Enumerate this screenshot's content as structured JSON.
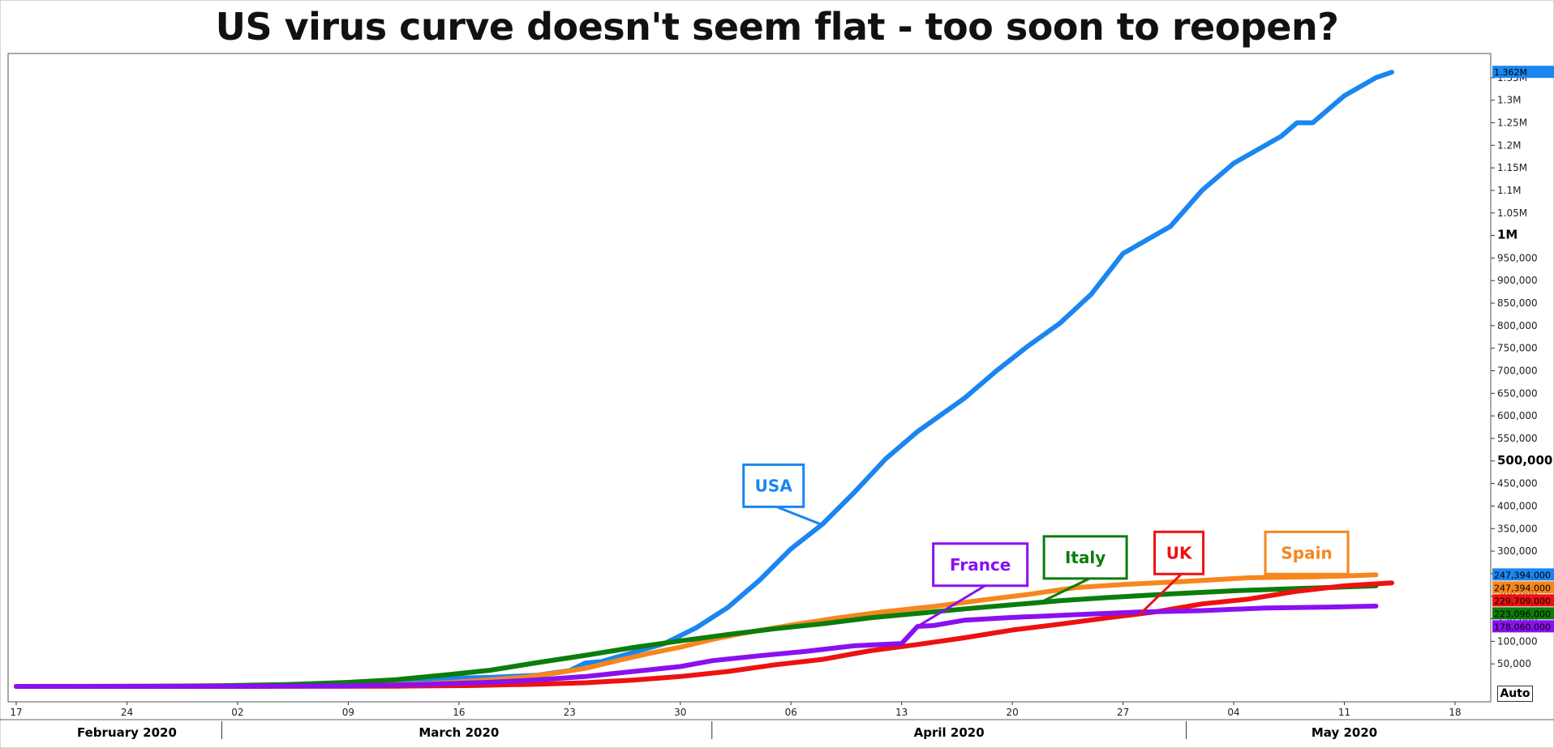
{
  "chart_data": {
    "type": "line",
    "title": "US virus curve doesn't seem flat - too soon to reopen?",
    "xlabel": "",
    "ylabel": "",
    "x_range": [
      "2020-02-17",
      "2020-05-18"
    ],
    "ylim": [
      0,
      1400000
    ],
    "y_ticks": [
      {
        "value": 50000,
        "label": "50,000"
      },
      {
        "value": 100000,
        "label": "100,000"
      },
      {
        "value": 150000,
        "label": "150,000"
      },
      {
        "value": 200000,
        "label": "200,000"
      },
      {
        "value": 250000,
        "label": "250,000"
      },
      {
        "value": 300000,
        "label": "300,000"
      },
      {
        "value": 350000,
        "label": "350,000"
      },
      {
        "value": 400000,
        "label": "400,000"
      },
      {
        "value": 450000,
        "label": "450,000"
      },
      {
        "value": 500000,
        "label": "500,000",
        "major": true
      },
      {
        "value": 550000,
        "label": "550,000"
      },
      {
        "value": 600000,
        "label": "600,000"
      },
      {
        "value": 650000,
        "label": "650,000"
      },
      {
        "value": 700000,
        "label": "700,000"
      },
      {
        "value": 750000,
        "label": "750,000"
      },
      {
        "value": 800000,
        "label": "800,000"
      },
      {
        "value": 850000,
        "label": "850,000"
      },
      {
        "value": 900000,
        "label": "900,000"
      },
      {
        "value": 950000,
        "label": "950,000"
      },
      {
        "value": 1000000,
        "label": "1M",
        "major": true
      },
      {
        "value": 1050000,
        "label": "1.05M"
      },
      {
        "value": 1100000,
        "label": "1.1M"
      },
      {
        "value": 1150000,
        "label": "1.15M"
      },
      {
        "value": 1200000,
        "label": "1.2M"
      },
      {
        "value": 1250000,
        "label": "1.25M"
      },
      {
        "value": 1300000,
        "label": "1.3M"
      },
      {
        "value": 1350000,
        "label": "1.35M"
      }
    ],
    "x_ticks": [
      {
        "date": "2020-02-17",
        "label": "17"
      },
      {
        "date": "2020-02-24",
        "label": "24"
      },
      {
        "date": "2020-03-02",
        "label": "02"
      },
      {
        "date": "2020-03-09",
        "label": "09"
      },
      {
        "date": "2020-03-16",
        "label": "16"
      },
      {
        "date": "2020-03-23",
        "label": "23"
      },
      {
        "date": "2020-03-30",
        "label": "30"
      },
      {
        "date": "2020-04-06",
        "label": "06"
      },
      {
        "date": "2020-04-13",
        "label": "13"
      },
      {
        "date": "2020-04-20",
        "label": "20"
      },
      {
        "date": "2020-04-27",
        "label": "27"
      },
      {
        "date": "2020-05-04",
        "label": "04"
      },
      {
        "date": "2020-05-11",
        "label": "11"
      },
      {
        "date": "2020-05-18",
        "label": "18"
      }
    ],
    "months": [
      {
        "label": "February 2020",
        "center": "2020-02-24",
        "end": "2020-03-01"
      },
      {
        "label": "March 2020",
        "center": "2020-03-16",
        "end": "2020-04-01"
      },
      {
        "label": "April 2020",
        "center": "2020-04-16",
        "end": "2020-05-01"
      },
      {
        "label": "May 2020",
        "center": "2020-05-11",
        "end": null
      }
    ],
    "series": [
      {
        "name": "USA",
        "color": "#1a86f0",
        "last_label": "1.362M",
        "points": [
          [
            "2020-02-17",
            0
          ],
          [
            "2020-02-26",
            100
          ],
          [
            "2020-03-02",
            1000
          ],
          [
            "2020-03-07",
            3000
          ],
          [
            "2020-03-11",
            9000
          ],
          [
            "2020-03-15",
            18000
          ],
          [
            "2020-03-18",
            20000
          ],
          [
            "2020-03-21",
            25000
          ],
          [
            "2020-03-23",
            35000
          ],
          [
            "2020-03-24",
            52000
          ],
          [
            "2020-03-25",
            55000
          ],
          [
            "2020-03-26",
            65000
          ],
          [
            "2020-03-27",
            75000
          ],
          [
            "2020-03-29",
            95000
          ],
          [
            "2020-03-31",
            130000
          ],
          [
            "2020-04-02",
            175000
          ],
          [
            "2020-04-04",
            235000
          ],
          [
            "2020-04-06",
            305000
          ],
          [
            "2020-04-08",
            360000
          ],
          [
            "2020-04-10",
            430000
          ],
          [
            "2020-04-12",
            505000
          ],
          [
            "2020-04-14",
            565000
          ],
          [
            "2020-04-17",
            640000
          ],
          [
            "2020-04-19",
            700000
          ],
          [
            "2020-04-21",
            755000
          ],
          [
            "2020-04-23",
            805000
          ],
          [
            "2020-04-25",
            870000
          ],
          [
            "2020-04-27",
            960000
          ],
          [
            "2020-04-30",
            1020000
          ],
          [
            "2020-05-02",
            1100000
          ],
          [
            "2020-05-04",
            1160000
          ],
          [
            "2020-05-07",
            1220000
          ],
          [
            "2020-05-08",
            1250000
          ],
          [
            "2020-05-09",
            1250000
          ],
          [
            "2020-05-11",
            1310000
          ],
          [
            "2020-05-13",
            1350000
          ],
          [
            "2020-05-14",
            1362000
          ]
        ]
      },
      {
        "name": "Spain",
        "color": "#f7861d",
        "last_label": "247,394.000",
        "points": [
          [
            "2020-02-17",
            0
          ],
          [
            "2020-03-02",
            200
          ],
          [
            "2020-03-09",
            1500
          ],
          [
            "2020-03-14",
            6000
          ],
          [
            "2020-03-17",
            12000
          ],
          [
            "2020-03-20",
            20000
          ],
          [
            "2020-03-22",
            29000
          ],
          [
            "2020-03-24",
            40000
          ],
          [
            "2020-03-26",
            57000
          ],
          [
            "2020-03-28",
            73000
          ],
          [
            "2020-03-30",
            87000
          ],
          [
            "2020-04-01",
            104000
          ],
          [
            "2020-04-03",
            118000
          ],
          [
            "2020-04-06",
            136000
          ],
          [
            "2020-04-09",
            152000
          ],
          [
            "2020-04-12",
            166000
          ],
          [
            "2020-04-15",
            177000
          ],
          [
            "2020-04-18",
            191000
          ],
          [
            "2020-04-21",
            204000
          ],
          [
            "2020-04-24",
            219000
          ],
          [
            "2020-04-27",
            226000
          ],
          [
            "2020-05-01",
            233000
          ],
          [
            "2020-05-05",
            241000
          ],
          [
            "2020-05-09",
            243000
          ],
          [
            "2020-05-11",
            245000
          ],
          [
            "2020-05-13",
            247394
          ]
        ]
      },
      {
        "name": "Italy",
        "color": "#0b7d0b",
        "last_label": "223,096.000",
        "points": [
          [
            "2020-02-17",
            0
          ],
          [
            "2020-02-22",
            100
          ],
          [
            "2020-02-26",
            500
          ],
          [
            "2020-03-01",
            1700
          ],
          [
            "2020-03-05",
            4000
          ],
          [
            "2020-03-09",
            9000
          ],
          [
            "2020-03-12",
            15000
          ],
          [
            "2020-03-15",
            25000
          ],
          [
            "2020-03-18",
            36000
          ],
          [
            "2020-03-21",
            53000
          ],
          [
            "2020-03-24",
            69000
          ],
          [
            "2020-03-27",
            86000
          ],
          [
            "2020-03-30",
            101000
          ],
          [
            "2020-04-02",
            115000
          ],
          [
            "2020-04-05",
            128000
          ],
          [
            "2020-04-08",
            139000
          ],
          [
            "2020-04-11",
            152000
          ],
          [
            "2020-04-14",
            162000
          ],
          [
            "2020-04-17",
            172000
          ],
          [
            "2020-04-20",
            181000
          ],
          [
            "2020-04-23",
            190000
          ],
          [
            "2020-04-26",
            197000
          ],
          [
            "2020-04-30",
            205000
          ],
          [
            "2020-05-04",
            212000
          ],
          [
            "2020-05-08",
            217000
          ],
          [
            "2020-05-13",
            223096
          ]
        ]
      },
      {
        "name": "UK",
        "color": "#ee1111",
        "last_label": "229,709.000",
        "points": [
          [
            "2020-02-17",
            0
          ],
          [
            "2020-03-05",
            100
          ],
          [
            "2020-03-12",
            600
          ],
          [
            "2020-03-17",
            2000
          ],
          [
            "2020-03-21",
            5000
          ],
          [
            "2020-03-24",
            8000
          ],
          [
            "2020-03-27",
            14000
          ],
          [
            "2020-03-30",
            22000
          ],
          [
            "2020-04-02",
            33000
          ],
          [
            "2020-04-05",
            48000
          ],
          [
            "2020-04-08",
            60000
          ],
          [
            "2020-04-11",
            79000
          ],
          [
            "2020-04-14",
            93000
          ],
          [
            "2020-04-17",
            108000
          ],
          [
            "2020-04-20",
            125000
          ],
          [
            "2020-04-23",
            138000
          ],
          [
            "2020-04-26",
            152000
          ],
          [
            "2020-04-29",
            165000
          ],
          [
            "2020-05-02",
            183000
          ],
          [
            "2020-05-05",
            194000
          ],
          [
            "2020-05-08",
            211000
          ],
          [
            "2020-05-11",
            223000
          ],
          [
            "2020-05-14",
            229709
          ]
        ]
      },
      {
        "name": "France",
        "color": "#8a10f0",
        "last_label": "178,060.000",
        "points": [
          [
            "2020-02-17",
            0
          ],
          [
            "2020-03-02",
            100
          ],
          [
            "2020-03-09",
            1200
          ],
          [
            "2020-03-14",
            4500
          ],
          [
            "2020-03-18",
            9100
          ],
          [
            "2020-03-21",
            14500
          ],
          [
            "2020-03-24",
            22000
          ],
          [
            "2020-03-27",
            33000
          ],
          [
            "2020-03-30",
            44000
          ],
          [
            "2020-04-01",
            57000
          ],
          [
            "2020-04-04",
            68000
          ],
          [
            "2020-04-07",
            78000
          ],
          [
            "2020-04-10",
            90000
          ],
          [
            "2020-04-13",
            95000
          ],
          [
            "2020-04-14",
            133000
          ],
          [
            "2020-04-15",
            135000
          ],
          [
            "2020-04-17",
            147000
          ],
          [
            "2020-04-20",
            153000
          ],
          [
            "2020-04-24",
            159000
          ],
          [
            "2020-04-28",
            165000
          ],
          [
            "2020-05-02",
            168000
          ],
          [
            "2020-05-06",
            174000
          ],
          [
            "2020-05-10",
            176000
          ],
          [
            "2020-05-13",
            178060
          ]
        ]
      }
    ],
    "callouts": [
      {
        "text": "USA",
        "color": "#1a86f0",
        "box": [
          "2020-04-03",
          445000
        ],
        "anchor": [
          "2020-04-08",
          358000
        ]
      },
      {
        "text": "France",
        "color": "#8a10f0",
        "box": [
          "2020-04-15",
          270000
        ],
        "anchor": [
          "2020-04-14",
          133000
        ]
      },
      {
        "text": "Italy",
        "color": "#0b7d0b",
        "box": [
          "2020-04-22",
          286000
        ],
        "anchor": [
          "2020-04-22",
          190000
        ]
      },
      {
        "text": "UK",
        "color": "#ee1111",
        "box": [
          "2020-04-29",
          296000
        ],
        "anchor": [
          "2020-04-28",
          158000
        ]
      },
      {
        "text": "Spain",
        "color": "#f7861d",
        "box": [
          "2020-05-06",
          296000
        ],
        "anchor": [
          "2020-05-05",
          241000
        ]
      }
    ],
    "right_tags": [
      {
        "value": 1362000,
        "label": "1.362M",
        "color": "#1a86f0"
      },
      {
        "value": 247394,
        "label": "247,394.000",
        "color": "#1a86f0"
      },
      {
        "value": 240000,
        "label": "247,394.000",
        "color": "#f7861d"
      },
      {
        "value": 229709,
        "label": "229,709.000",
        "color": "#ee1111"
      },
      {
        "value": 223096,
        "label": "223,096.000",
        "color": "#0b7d0b"
      },
      {
        "value": 178060,
        "label": "178,060.000",
        "color": "#8a10f0"
      }
    ],
    "grid": false,
    "legend": "none"
  },
  "controls": {
    "auto_label": "Auto"
  }
}
